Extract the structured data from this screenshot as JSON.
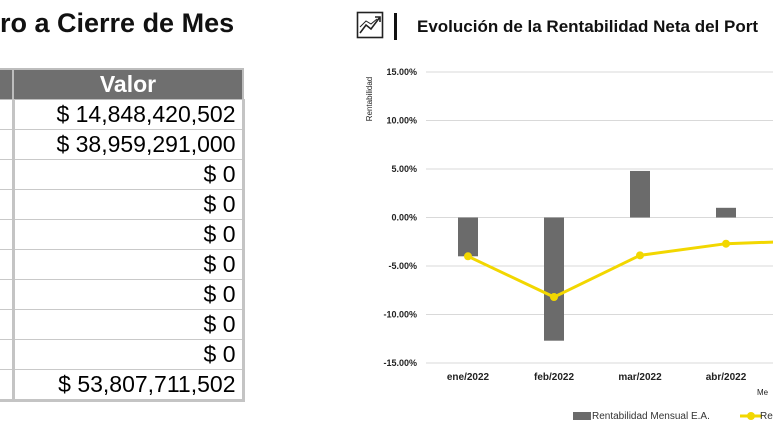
{
  "left_panel": {
    "title": "ro a Cierre de Mes",
    "column_header": "Valor",
    "rows": [
      "$ 14,848,420,502",
      "$ 38,959,291,000",
      "$ 0",
      "$ 0",
      "$ 0",
      "$ 0",
      "$ 0",
      "$ 0",
      "$ 0",
      "$ 53,807,711,502"
    ]
  },
  "right_panel": {
    "icon": "trend-chart-icon",
    "title": "Evolución de la Rentabilidad Neta del Port"
  },
  "colors": {
    "header_bg": "#6f6f6f",
    "bar": "#6b6b6b",
    "line": "#f2d700"
  },
  "chart_data": {
    "type": "bar",
    "title": "Evolución de la Rentabilidad Neta del Port",
    "ylabel": "Rentabilidad",
    "xlabel": "Me",
    "categories": [
      "ene/2022",
      "feb/2022",
      "mar/2022",
      "abr/2022"
    ],
    "y_ticks": [
      "15.00%",
      "10.00%",
      "5.00%",
      "0.00%",
      "-5.00%",
      "-10.00%",
      "-15.00%"
    ],
    "ylim": [
      -15,
      15
    ],
    "grid": true,
    "legend_position": "bottom",
    "series": [
      {
        "name": "Rentabilidad Mensual E.A.",
        "kind": "bar",
        "values": [
          -4.0,
          -12.7,
          4.8,
          1.0
        ]
      },
      {
        "name": "Re",
        "kind": "line",
        "values": [
          -4.0,
          -8.2,
          -3.9,
          -2.7
        ],
        "next_value": -2.5
      }
    ]
  }
}
